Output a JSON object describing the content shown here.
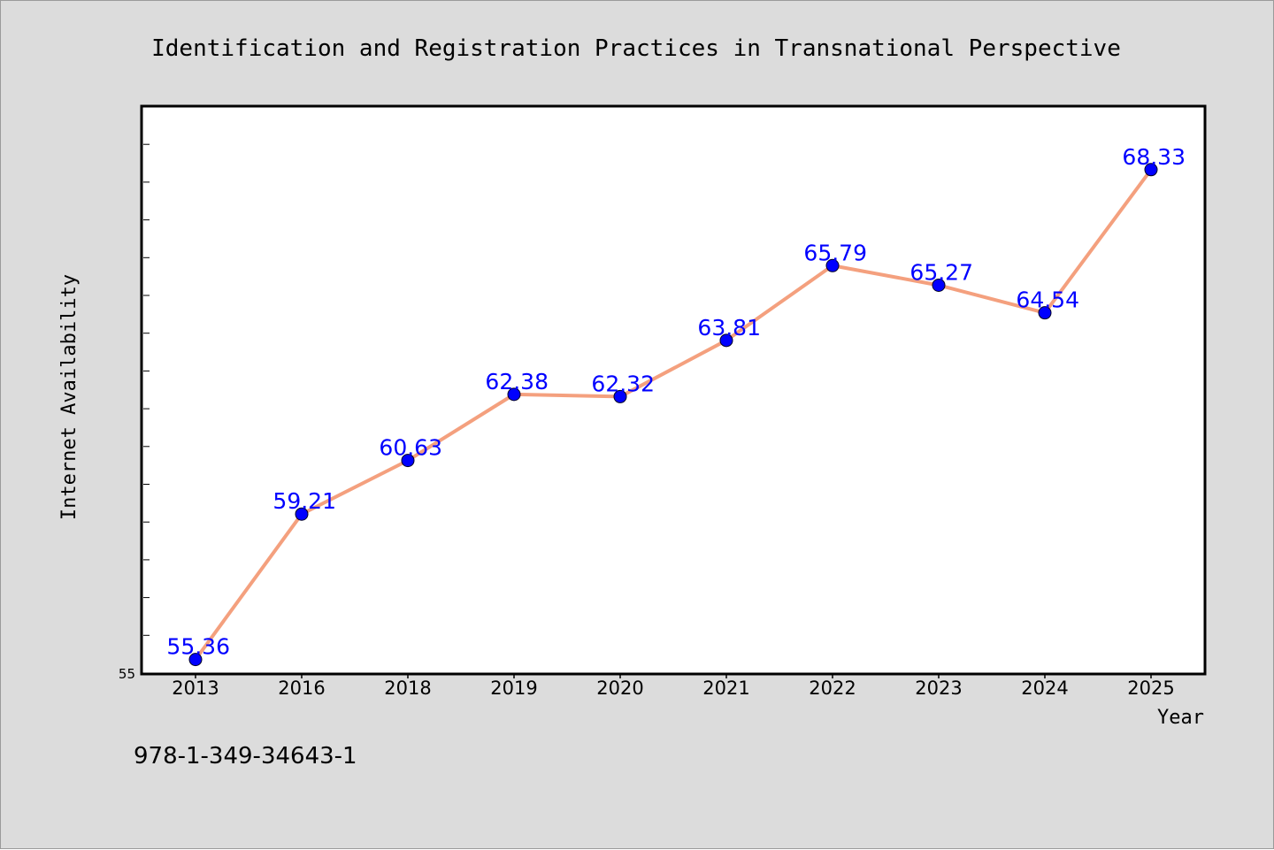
{
  "chart_data": {
    "type": "line",
    "title": "Identification and Registration Practices in Transnational Perspective",
    "xlabel": "Year",
    "ylabel": "Internet Availability",
    "categories": [
      "2013",
      "2016",
      "2018",
      "2019",
      "2020",
      "2021",
      "2022",
      "2023",
      "2024",
      "2025"
    ],
    "series": [
      {
        "values": [
          55.36,
          59.21,
          60.63,
          62.38,
          62.32,
          63.81,
          65.79,
          65.27,
          64.54,
          68.33
        ],
        "data_labels": [
          "55.36",
          "59.21",
          "60.63",
          "62.38",
          "62.32",
          "63.81",
          "65.79",
          "65.27",
          "64.54",
          "68.33"
        ]
      }
    ],
    "y_min_label": "55",
    "ylim": [
      55,
      70
    ],
    "grid": false,
    "colors": {
      "line": "#f4a07e",
      "marker": "#0000ff",
      "label": "#0000ff",
      "background": "#dcdcdc",
      "plot_background": "#ffffff"
    }
  },
  "footer": {
    "isbn": "978-1-349-34643-1"
  }
}
